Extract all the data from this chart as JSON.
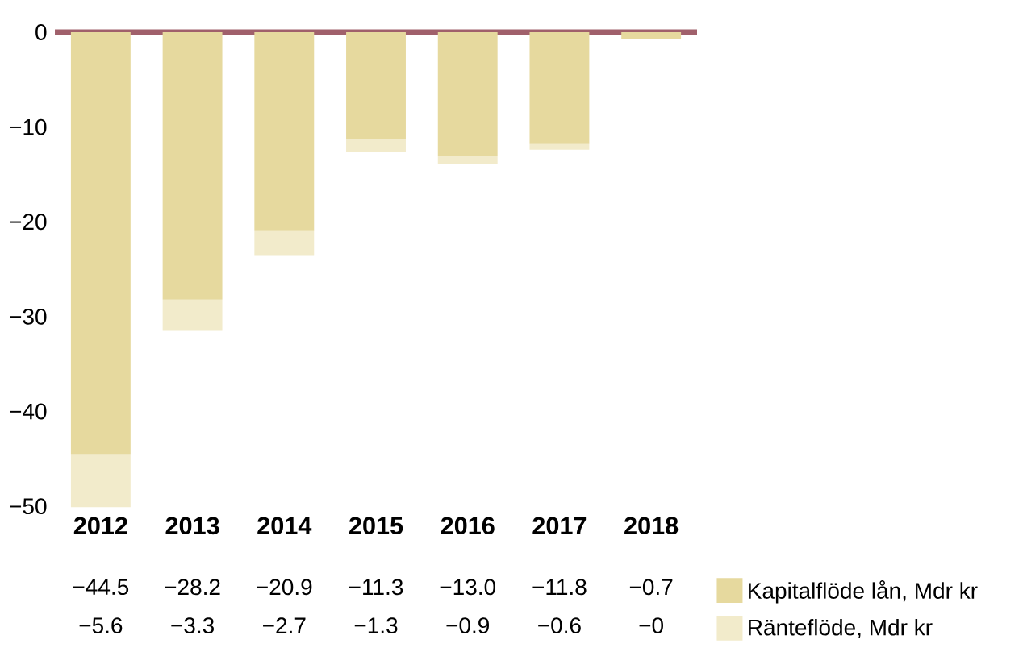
{
  "chart_data": {
    "type": "bar",
    "stacked": true,
    "categories": [
      "2012",
      "2013",
      "2014",
      "2015",
      "2016",
      "2017",
      "2018"
    ],
    "series": [
      {
        "name": "Kapitalflöde lån, Mdr kr",
        "color": "#e6d99e",
        "values": [
          -44.5,
          -28.2,
          -20.9,
          -11.3,
          -13.0,
          -11.8,
          -0.7
        ],
        "value_labels": [
          "−44.5",
          "−28.2",
          "−20.9",
          "−11.3",
          "−13.0",
          "−11.8",
          "−0.7"
        ]
      },
      {
        "name": "Ränteflöde, Mdr kr",
        "color": "#f2ebcb",
        "values": [
          -5.6,
          -3.3,
          -2.7,
          -1.3,
          -0.9,
          -0.6,
          0
        ],
        "value_labels": [
          "−5.6",
          "−3.3",
          "−2.7",
          "−1.3",
          "−0.9",
          "−0.6",
          "−0"
        ]
      }
    ],
    "ylim": [
      -50.1,
      0
    ],
    "yticks": [
      {
        "value": 0,
        "label": "0"
      },
      {
        "value": -10,
        "label": "−10"
      },
      {
        "value": -20,
        "label": "−20"
      },
      {
        "value": -30,
        "label": "−30"
      },
      {
        "value": -40,
        "label": "−40"
      },
      {
        "value": -50,
        "label": "−50"
      }
    ],
    "ref_lines": [
      {
        "axis": "y",
        "value": 0,
        "color": "#a0606b"
      }
    ],
    "legend": "bottom right"
  }
}
